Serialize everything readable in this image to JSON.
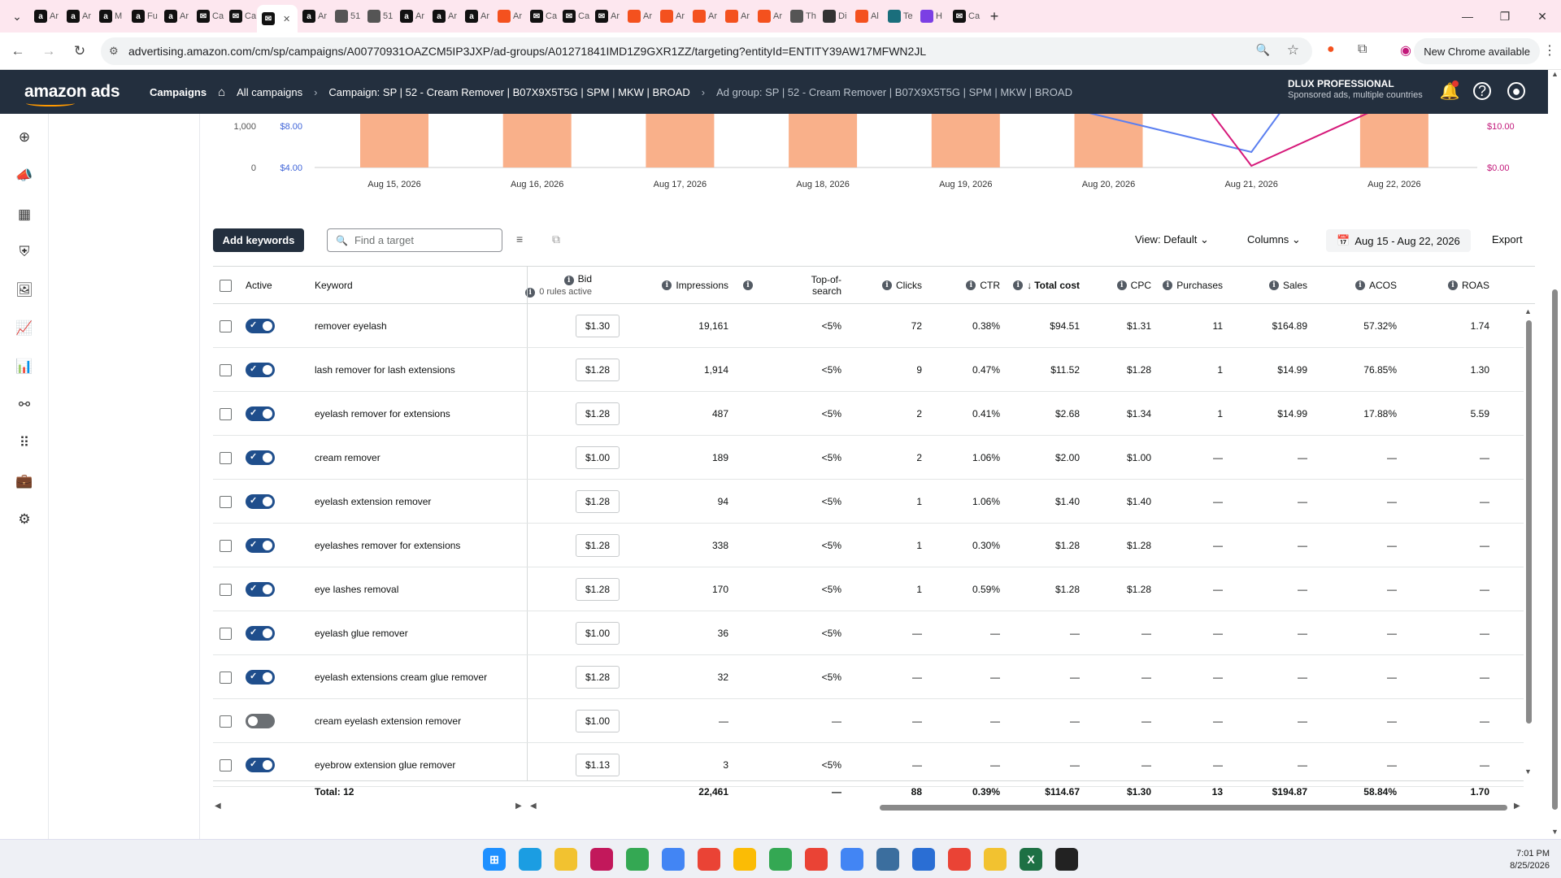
{
  "browser": {
    "tabs": [
      {
        "label": "Ar",
        "icon": "amazon-icon",
        "color": "#111"
      },
      {
        "label": "Ar",
        "icon": "amazon-icon",
        "color": "#111"
      },
      {
        "label": "M",
        "icon": "amazon-icon",
        "color": "#111"
      },
      {
        "label": "Fu",
        "icon": "amazon-icon",
        "color": "#111"
      },
      {
        "label": "Ar",
        "icon": "amazon-icon",
        "color": "#111"
      },
      {
        "label": "Ca",
        "icon": "mail-icon",
        "color": "#111"
      },
      {
        "label": "Ca",
        "icon": "mail-icon",
        "color": "#111"
      },
      {
        "label": "",
        "icon": "mail-icon",
        "color": "#111",
        "active": true
      },
      {
        "label": "Ar",
        "icon": "amazon-icon",
        "color": "#111"
      },
      {
        "label": "51",
        "icon": "globe-icon",
        "color": "#555"
      },
      {
        "label": "51",
        "icon": "globe-icon",
        "color": "#555"
      },
      {
        "label": "Ar",
        "icon": "amazon-icon",
        "color": "#111"
      },
      {
        "label": "Ar",
        "icon": "amazon-icon",
        "color": "#111"
      },
      {
        "label": "Ar",
        "icon": "amazon-icon",
        "color": "#111"
      },
      {
        "label": "Ar",
        "icon": "tool-icon",
        "color": "#f4511e"
      },
      {
        "label": "Ca",
        "icon": "mail-icon",
        "color": "#111"
      },
      {
        "label": "Ca",
        "icon": "mail-icon",
        "color": "#111"
      },
      {
        "label": "Ar",
        "icon": "mail-icon",
        "color": "#111"
      },
      {
        "label": "Ar",
        "icon": "tool-icon",
        "color": "#f4511e"
      },
      {
        "label": "Ar",
        "icon": "tool-icon",
        "color": "#f4511e"
      },
      {
        "label": "Ar",
        "icon": "tool-icon",
        "color": "#f4511e"
      },
      {
        "label": "Ar",
        "icon": "tool-icon",
        "color": "#f4511e"
      },
      {
        "label": "Ar",
        "icon": "tool-icon",
        "color": "#f4511e"
      },
      {
        "label": "Th",
        "icon": "circle-icon",
        "color": "#555"
      },
      {
        "label": "Di",
        "icon": "circle-icon",
        "color": "#333"
      },
      {
        "label": "Al",
        "icon": "tool-icon",
        "color": "#f4511e"
      },
      {
        "label": "Te",
        "icon": "circle-icon",
        "color": "#1a6e7c"
      },
      {
        "label": "H",
        "icon": "gem-icon",
        "color": "#7b3fe4"
      },
      {
        "label": "Ca",
        "icon": "mail-icon",
        "color": "#111"
      }
    ],
    "url": "advertising.amazon.com/cm/sp/campaigns/A00770931OAZCM5IP3JXP/ad-groups/A01271841IMD1Z9GXR1ZZ/targeting?entityId=ENTITY39AW17MFWN2JL",
    "new_chrome_label": "New Chrome available"
  },
  "header": {
    "logo_text": "amazon ads",
    "breadcrumbs": [
      {
        "label": "Campaigns",
        "style": "bold"
      },
      {
        "label": "All campaigns",
        "style": "normal"
      },
      {
        "label": "Campaign: SP | 52 - Cream Remover | B07X9X5T5G | SPM | MKW | BROAD",
        "style": "normal"
      },
      {
        "label": "Ad group: SP | 52 - Cream Remover | B07X9X5T5G | SPM | MKW | BROAD",
        "style": "dim"
      }
    ],
    "account_name": "DLUX PROFESSIONAL",
    "account_sub": "Sponsored ads, multiple countries"
  },
  "leftnav": {
    "icons": [
      "plus-circle-icon",
      "megaphone-icon",
      "grid-icon",
      "shield-icon",
      "images-icon",
      "line-chart-icon",
      "bar-chart-icon",
      "network-icon",
      "apps-icon",
      "briefcase-icon",
      "settings-icon"
    ]
  },
  "chart_data": {
    "type": "bar",
    "categories": [
      "Aug 15, 2026",
      "Aug 16, 2026",
      "Aug 17, 2026",
      "Aug 18, 2026",
      "Aug 19, 2026",
      "Aug 20, 2026",
      "Aug 21, 2026",
      "Aug 22, 2026"
    ],
    "left_axis_ticks": [
      "1,000",
      "0"
    ],
    "left_axis2_ticks": [
      "$8.00",
      "$4.00"
    ],
    "right_axis_ticks": [
      "$10.00",
      "$0.00"
    ],
    "colors": {
      "bars": "#f9b08a",
      "line_blue": "#5b7ff0",
      "line_pink": "#d6197a",
      "left_axis2": "#3f64d8",
      "right_axis": "#c2187a"
    }
  },
  "toolbar": {
    "add_keywords": "Add keywords",
    "search_placeholder": "Find a target",
    "view": "View: Default",
    "columns": "Columns",
    "date_range": "Aug 15 - Aug 22, 2026",
    "export": "Export"
  },
  "table": {
    "headers": {
      "active": "Active",
      "keyword": "Keyword",
      "bid": "Bid",
      "bid_sub": "0 rules active",
      "impressions": "Impressions",
      "top_of_search": "Top-of-search",
      "clicks": "Clicks",
      "ctr": "CTR",
      "total_cost": "Total cost",
      "cpc": "CPC",
      "purchases": "Purchases",
      "sales": "Sales",
      "acos": "ACOS",
      "roas": "ROAS"
    },
    "rows": [
      {
        "active": true,
        "keyword": "remover eyelash",
        "bid": "$1.30",
        "impressions": "19,161",
        "tos": "<5%",
        "clicks": "72",
        "ctr": "0.38%",
        "cost": "$94.51",
        "cpc": "$1.31",
        "purchases": "11",
        "sales": "$164.89",
        "acos": "57.32%",
        "roas": "1.74"
      },
      {
        "active": true,
        "keyword": "lash remover for lash extensions",
        "bid": "$1.28",
        "impressions": "1,914",
        "tos": "<5%",
        "clicks": "9",
        "ctr": "0.47%",
        "cost": "$11.52",
        "cpc": "$1.28",
        "purchases": "1",
        "sales": "$14.99",
        "acos": "76.85%",
        "roas": "1.30"
      },
      {
        "active": true,
        "keyword": "eyelash remover for extensions",
        "bid": "$1.28",
        "impressions": "487",
        "tos": "<5%",
        "clicks": "2",
        "ctr": "0.41%",
        "cost": "$2.68",
        "cpc": "$1.34",
        "purchases": "1",
        "sales": "$14.99",
        "acos": "17.88%",
        "roas": "5.59"
      },
      {
        "active": true,
        "keyword": "cream remover",
        "bid": "$1.00",
        "impressions": "189",
        "tos": "<5%",
        "clicks": "2",
        "ctr": "1.06%",
        "cost": "$2.00",
        "cpc": "$1.00",
        "purchases": "—",
        "sales": "—",
        "acos": "—",
        "roas": "—"
      },
      {
        "active": true,
        "keyword": "eyelash extension remover",
        "bid": "$1.28",
        "impressions": "94",
        "tos": "<5%",
        "clicks": "1",
        "ctr": "1.06%",
        "cost": "$1.40",
        "cpc": "$1.40",
        "purchases": "—",
        "sales": "—",
        "acos": "—",
        "roas": "—"
      },
      {
        "active": true,
        "keyword": "eyelashes remover for extensions",
        "bid": "$1.28",
        "impressions": "338",
        "tos": "<5%",
        "clicks": "1",
        "ctr": "0.30%",
        "cost": "$1.28",
        "cpc": "$1.28",
        "purchases": "—",
        "sales": "—",
        "acos": "—",
        "roas": "—"
      },
      {
        "active": true,
        "keyword": "eye lashes removal",
        "bid": "$1.28",
        "impressions": "170",
        "tos": "<5%",
        "clicks": "1",
        "ctr": "0.59%",
        "cost": "$1.28",
        "cpc": "$1.28",
        "purchases": "—",
        "sales": "—",
        "acos": "—",
        "roas": "—"
      },
      {
        "active": true,
        "keyword": "eyelash glue remover",
        "bid": "$1.00",
        "impressions": "36",
        "tos": "<5%",
        "clicks": "—",
        "ctr": "—",
        "cost": "—",
        "cpc": "—",
        "purchases": "—",
        "sales": "—",
        "acos": "—",
        "roas": "—"
      },
      {
        "active": true,
        "keyword": "eyelash extensions cream glue remover",
        "bid": "$1.28",
        "impressions": "32",
        "tos": "<5%",
        "clicks": "—",
        "ctr": "—",
        "cost": "—",
        "cpc": "—",
        "purchases": "—",
        "sales": "—",
        "acos": "—",
        "roas": "—"
      },
      {
        "active": false,
        "keyword": "cream eyelash extension remover",
        "bid": "$1.00",
        "impressions": "—",
        "tos": "—",
        "clicks": "—",
        "ctr": "—",
        "cost": "—",
        "cpc": "—",
        "purchases": "—",
        "sales": "—",
        "acos": "—",
        "roas": "—"
      },
      {
        "active": true,
        "keyword": "eyebrow extension glue remover",
        "bid": "$1.13",
        "impressions": "3",
        "tos": "<5%",
        "clicks": "—",
        "ctr": "—",
        "cost": "—",
        "cpc": "—",
        "purchases": "—",
        "sales": "—",
        "acos": "—",
        "roas": "—"
      }
    ],
    "total": {
      "label": "Total: 12",
      "impressions": "22,461",
      "tos": "—",
      "clicks": "88",
      "ctr": "0.39%",
      "cost": "$114.67",
      "cpc": "$1.30",
      "purchases": "13",
      "sales": "$194.87",
      "acos": "58.84%",
      "roas": "1.70"
    }
  },
  "taskbar": {
    "apps": [
      {
        "name": "windows-start-icon",
        "color": "#1e90ff"
      },
      {
        "name": "edge-icon",
        "color": "#1b9de2"
      },
      {
        "name": "file-explorer-icon",
        "color": "#f2c230"
      },
      {
        "name": "snipping-tool-icon",
        "color": "#c2185b"
      },
      {
        "name": "chrome-icon",
        "color": "#34a853"
      },
      {
        "name": "chrome-icon",
        "color": "#4285f4"
      },
      {
        "name": "chrome-icon",
        "color": "#ea4335"
      },
      {
        "name": "chrome-icon",
        "color": "#fbbc05"
      },
      {
        "name": "chrome-icon",
        "color": "#34a853"
      },
      {
        "name": "chrome-icon",
        "color": "#ea4335"
      },
      {
        "name": "chrome-icon",
        "color": "#4285f4"
      },
      {
        "name": "remote-desktop-icon",
        "color": "#3b6e9e"
      },
      {
        "name": "notepad-icon",
        "color": "#2a6ed4"
      },
      {
        "name": "chrome-icon",
        "color": "#ea4335"
      },
      {
        "name": "chat-icon",
        "color": "#f2c230"
      },
      {
        "name": "excel-icon",
        "color": "#1d7044"
      },
      {
        "name": "media-player-icon",
        "color": "#222"
      }
    ],
    "time": "7:01 PM",
    "date": "8/25/2026"
  }
}
